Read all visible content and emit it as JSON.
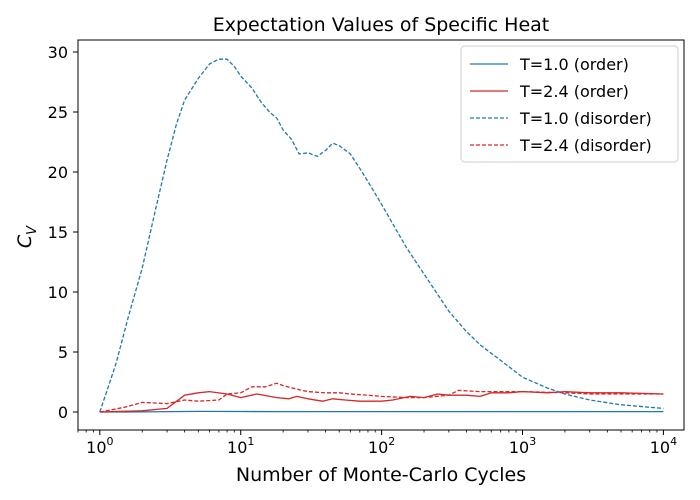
{
  "chart_data": {
    "type": "line",
    "title": "Expectation Values of Specific Heat",
    "xlabel": "Number of Monte-Carlo Cycles",
    "ylabel": "C",
    "ylabel_sub": "V",
    "xscale": "log",
    "xlim": [
      0.7,
      14000
    ],
    "ylim": [
      -1.5,
      31
    ],
    "x_ticks": [
      {
        "value": 1,
        "base": "10",
        "exp": "0"
      },
      {
        "value": 10,
        "base": "10",
        "exp": "1"
      },
      {
        "value": 100,
        "base": "10",
        "exp": "2"
      },
      {
        "value": 1000,
        "base": "10",
        "exp": "3"
      },
      {
        "value": 10000,
        "base": "10",
        "exp": "4"
      }
    ],
    "y_ticks": [
      0,
      5,
      10,
      15,
      20,
      25,
      30
    ],
    "y_tick_labels": [
      "0",
      "5",
      "10",
      "15",
      "20",
      "25",
      "30"
    ],
    "grid": false,
    "legend_position": "top-right",
    "series": [
      {
        "name": "T=1.0 (order)",
        "color": "#1f77b4",
        "dashed": false,
        "points": [
          [
            1,
            0
          ],
          [
            2,
            0.01
          ],
          [
            5,
            0.05
          ],
          [
            10,
            0.04
          ],
          [
            20,
            0.03
          ],
          [
            50,
            0.03
          ],
          [
            100,
            0.03
          ],
          [
            200,
            0.03
          ],
          [
            500,
            0.03
          ],
          [
            1000,
            0.03
          ],
          [
            2000,
            0.03
          ],
          [
            5000,
            0.03
          ],
          [
            10000,
            0.03
          ]
        ]
      },
      {
        "name": "T=2.4 (order)",
        "color": "#d62728",
        "dashed": false,
        "points": [
          [
            1,
            0
          ],
          [
            2,
            0.1
          ],
          [
            3,
            0.3
          ],
          [
            4,
            1.4
          ],
          [
            5,
            1.6
          ],
          [
            6,
            1.7
          ],
          [
            8,
            1.5
          ],
          [
            10,
            1.2
          ],
          [
            13,
            1.5
          ],
          [
            18,
            1.2
          ],
          [
            22,
            1.1
          ],
          [
            25,
            1.3
          ],
          [
            30,
            1.1
          ],
          [
            38,
            0.9
          ],
          [
            45,
            1.1
          ],
          [
            55,
            1.0
          ],
          [
            70,
            0.9
          ],
          [
            100,
            0.9
          ],
          [
            120,
            1.0
          ],
          [
            160,
            1.3
          ],
          [
            200,
            1.2
          ],
          [
            250,
            1.5
          ],
          [
            300,
            1.4
          ],
          [
            400,
            1.4
          ],
          [
            500,
            1.3
          ],
          [
            600,
            1.6
          ],
          [
            800,
            1.6
          ],
          [
            1000,
            1.7
          ],
          [
            1500,
            1.6
          ],
          [
            2000,
            1.7
          ],
          [
            3000,
            1.6
          ],
          [
            5000,
            1.6
          ],
          [
            10000,
            1.5
          ]
        ]
      },
      {
        "name": "T=1.0 (disorder)",
        "color": "#1f77b4",
        "dashed": true,
        "points": [
          [
            1,
            0
          ],
          [
            1.3,
            4
          ],
          [
            1.6,
            8
          ],
          [
            2,
            12
          ],
          [
            2.5,
            17
          ],
          [
            3,
            21
          ],
          [
            3.5,
            24
          ],
          [
            4,
            26
          ],
          [
            5,
            27.8
          ],
          [
            6,
            29
          ],
          [
            7,
            29.4
          ],
          [
            8,
            29.4
          ],
          [
            9,
            28.8
          ],
          [
            10,
            28
          ],
          [
            12,
            27
          ],
          [
            14,
            25.8
          ],
          [
            16,
            25
          ],
          [
            18,
            24.5
          ],
          [
            20,
            23.5
          ],
          [
            23,
            22.7
          ],
          [
            26,
            21.5
          ],
          [
            30,
            21.6
          ],
          [
            35,
            21.3
          ],
          [
            40,
            21.8
          ],
          [
            45,
            22.4
          ],
          [
            50,
            22.2
          ],
          [
            60,
            21.5
          ],
          [
            70,
            20.3
          ],
          [
            80,
            19.2
          ],
          [
            100,
            17.3
          ],
          [
            150,
            13.7
          ],
          [
            200,
            11.5
          ],
          [
            300,
            8.4
          ],
          [
            400,
            6.7
          ],
          [
            500,
            5.6
          ],
          [
            700,
            4.3
          ],
          [
            1000,
            2.9
          ],
          [
            1500,
            2.0
          ],
          [
            2000,
            1.5
          ],
          [
            3000,
            1.0
          ],
          [
            5000,
            0.6
          ],
          [
            10000,
            0.3
          ]
        ]
      },
      {
        "name": "T=2.4 (disorder)",
        "color": "#d62728",
        "dashed": true,
        "points": [
          [
            1,
            0
          ],
          [
            1.5,
            0.4
          ],
          [
            2,
            0.8
          ],
          [
            3,
            0.7
          ],
          [
            4,
            1.0
          ],
          [
            5,
            0.9
          ],
          [
            7,
            1.0
          ],
          [
            8,
            1.5
          ],
          [
            10,
            1.6
          ],
          [
            12,
            2.1
          ],
          [
            15,
            2.1
          ],
          [
            18,
            2.4
          ],
          [
            20,
            2.2
          ],
          [
            25,
            1.9
          ],
          [
            30,
            1.7
          ],
          [
            40,
            1.6
          ],
          [
            50,
            1.6
          ],
          [
            60,
            1.5
          ],
          [
            80,
            1.4
          ],
          [
            100,
            1.3
          ],
          [
            150,
            1.2
          ],
          [
            200,
            1.2
          ],
          [
            300,
            1.4
          ],
          [
            350,
            1.8
          ],
          [
            500,
            1.7
          ],
          [
            800,
            1.7
          ],
          [
            1000,
            1.7
          ],
          [
            2000,
            1.6
          ],
          [
            3000,
            1.5
          ],
          [
            5000,
            1.5
          ],
          [
            10000,
            1.5
          ]
        ]
      }
    ]
  }
}
